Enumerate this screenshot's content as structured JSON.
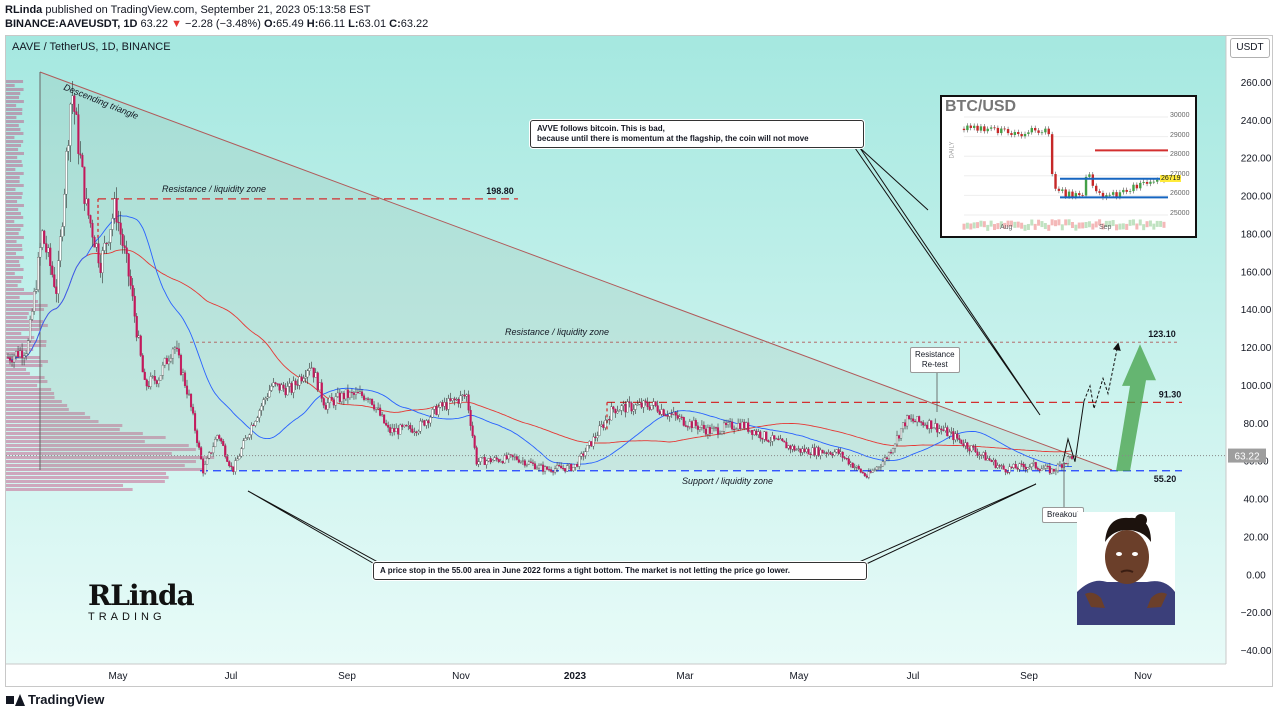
{
  "header": {
    "author": "RLinda",
    "published_text": "published on TradingView.com, September 21, 2023 05:13:58 EST",
    "ticker": "BINANCE:AAVEUSDT, 1D",
    "last": "63.22",
    "change_arrow": "▼",
    "change": "−2.28 (−3.48%)",
    "ohlc_o_label": "O:",
    "ohlc_o": "65.49",
    "ohlc_h_label": "H:",
    "ohlc_h": "66.11",
    "ohlc_l_label": "L:",
    "ohlc_l": "63.01",
    "ohlc_c_label": "C:",
    "ohlc_c": "63.22"
  },
  "symbol_title": "AAVE / TetherUS, 1D, BINANCE",
  "currency_button": "USDT",
  "footer_brand": "TradingView",
  "colors": {
    "up": "#ffffff",
    "down": "#c2185b",
    "ma_fast": "#2962ff",
    "ma_slow": "#e53935",
    "support": "#1e40ff",
    "resistance": "#d32f2f",
    "bg_gradient_top": "#a5e8e0",
    "bg_gradient_bottom": "#e8fbf8",
    "volume_profile": "#c2185b",
    "arrow": "#43a047"
  },
  "annotations": {
    "descending_triangle": "Descending triangle",
    "resistance_zone_1": "Resistance / liquidity zone",
    "resistance_zone_2": "Resistance / liquidity zone",
    "support_zone": "Support / liquidity zone",
    "retest": "Resistance\nRe-test",
    "breakout": "Breakout",
    "callout_top": "AVVE follows bitcoin. This is bad,\nbecause until there is momentum at the flagship, the coin will not move",
    "callout_bottom": "A price stop in the 55.00 area in June 2022 forms a tight bottom. The market is not letting the price go lower."
  },
  "brand_logo": {
    "line1": "RLinda",
    "line2": "TRADING"
  },
  "inset": {
    "title": "BTC/USD",
    "side_label": "DAILY",
    "y_ticks": [
      "30000",
      "29000",
      "28000",
      "27000",
      "26000",
      "25000"
    ],
    "last_tag": "26719",
    "x_ticks": [
      "Aug",
      "Sep"
    ]
  },
  "chart_data": {
    "type": "candlestick",
    "title": "AAVE / TetherUS, 1D, BINANCE",
    "y_ticks": [
      260,
      240,
      220,
      200,
      180,
      160,
      140,
      120,
      100,
      80,
      60,
      40,
      20,
      0,
      -20,
      -40
    ],
    "y_tick_labels": [
      "260.00",
      "240.00",
      "220.00",
      "200.00",
      "180.00",
      "160.00",
      "140.00",
      "120.00",
      "100.00",
      "80.00",
      "60.00",
      "40.00",
      "20.00",
      "0.00",
      "−20.00",
      "−40.00"
    ],
    "ylim": [
      -45,
      275
    ],
    "x_ticks": [
      "May",
      "Jul",
      "Sep",
      "Nov",
      "2023",
      "Mar",
      "May",
      "Jul",
      "Sep",
      "Nov"
    ],
    "last_price": 63.22,
    "last_price_label": "63.22",
    "levels": [
      {
        "name": "resistance_198",
        "value": 198.8,
        "label": "198.80"
      },
      {
        "name": "resistance_123",
        "value": 123.1,
        "label": "123.10"
      },
      {
        "name": "resistance_91",
        "value": 91.3,
        "label": "91.30"
      },
      {
        "name": "support_55",
        "value": 55.2,
        "label": "55.20"
      }
    ],
    "price_path": [
      {
        "t": 0.0,
        "p": 115
      },
      {
        "t": 0.02,
        "p": 120
      },
      {
        "t": 0.035,
        "p": 180
      },
      {
        "t": 0.05,
        "p": 150
      },
      {
        "t": 0.065,
        "p": 258
      },
      {
        "t": 0.08,
        "p": 195
      },
      {
        "t": 0.095,
        "p": 165
      },
      {
        "t": 0.11,
        "p": 195
      },
      {
        "t": 0.125,
        "p": 155
      },
      {
        "t": 0.14,
        "p": 100
      },
      {
        "t": 0.155,
        "p": 105
      },
      {
        "t": 0.17,
        "p": 122
      },
      {
        "t": 0.185,
        "p": 95
      },
      {
        "t": 0.2,
        "p": 55
      },
      {
        "t": 0.215,
        "p": 75
      },
      {
        "t": 0.23,
        "p": 55
      },
      {
        "t": 0.25,
        "p": 80
      },
      {
        "t": 0.27,
        "p": 100
      },
      {
        "t": 0.29,
        "p": 98
      },
      {
        "t": 0.31,
        "p": 112
      },
      {
        "t": 0.325,
        "p": 90
      },
      {
        "t": 0.345,
        "p": 95
      },
      {
        "t": 0.37,
        "p": 95
      },
      {
        "t": 0.39,
        "p": 76
      },
      {
        "t": 0.42,
        "p": 78
      },
      {
        "t": 0.44,
        "p": 88
      },
      {
        "t": 0.47,
        "p": 95
      },
      {
        "t": 0.48,
        "p": 60
      },
      {
        "t": 0.52,
        "p": 62
      },
      {
        "t": 0.55,
        "p": 56
      },
      {
        "t": 0.58,
        "p": 57
      },
      {
        "t": 0.6,
        "p": 72
      },
      {
        "t": 0.62,
        "p": 88
      },
      {
        "t": 0.66,
        "p": 90
      },
      {
        "t": 0.69,
        "p": 82
      },
      {
        "t": 0.72,
        "p": 76
      },
      {
        "t": 0.75,
        "p": 80
      },
      {
        "t": 0.78,
        "p": 72
      },
      {
        "t": 0.81,
        "p": 66
      },
      {
        "t": 0.85,
        "p": 65
      },
      {
        "t": 0.88,
        "p": 52
      },
      {
        "t": 0.9,
        "p": 62
      },
      {
        "t": 0.92,
        "p": 82
      },
      {
        "t": 0.945,
        "p": 80
      },
      {
        "t": 0.97,
        "p": 73
      },
      {
        "t": 0.99,
        "p": 66
      },
      {
        "t": 1.02,
        "p": 56
      },
      {
        "t": 1.05,
        "p": 58
      },
      {
        "t": 1.07,
        "p": 55
      },
      {
        "t": 1.09,
        "p": 63
      }
    ]
  }
}
